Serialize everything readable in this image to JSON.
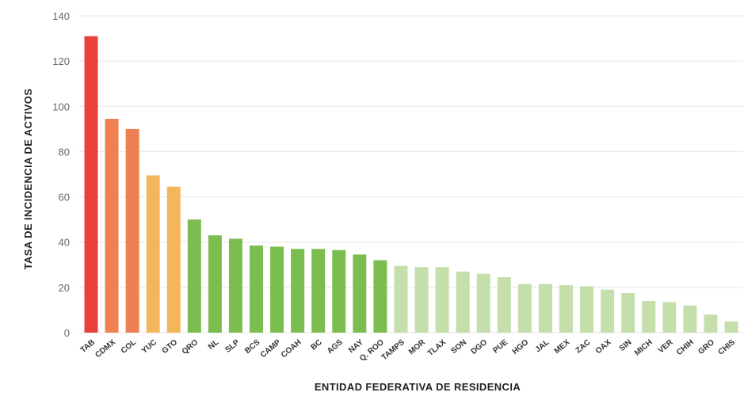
{
  "chart_data": {
    "type": "bar",
    "xlabel": "ENTIDAD FEDERATIVA DE RESIDENCIA",
    "ylabel": "TASA DE INCIDENCIA DE ACTIVOS",
    "ylim": [
      0,
      140
    ],
    "yticks": [
      0,
      20,
      40,
      60,
      80,
      100,
      120,
      140
    ],
    "grid": true,
    "categories": [
      "TAB",
      "CDMX",
      "COL",
      "YUC",
      "GTO",
      "QRO",
      "NL",
      "SLP",
      "BCS",
      "CAMP",
      "COAH",
      "BC",
      "AGS",
      "NAY",
      "Q. ROO",
      "TAMPS",
      "MOR",
      "TLAX",
      "SON",
      "DGO",
      "PUE",
      "HGO",
      "JAL",
      "MEX",
      "ZAC",
      "OAX",
      "SIN",
      "MICH",
      "VER",
      "CHIH",
      "GRO",
      "CHIS"
    ],
    "values": [
      131,
      94.5,
      90,
      69.5,
      64.5,
      50,
      43,
      41.5,
      38.5,
      38,
      37,
      37,
      36.5,
      34.5,
      32,
      29.5,
      29,
      29,
      27,
      26,
      24.5,
      21.5,
      21.5,
      21,
      20.5,
      19,
      17.5,
      14,
      13.5,
      12,
      8,
      5
    ],
    "colors": [
      "#e8413a",
      "#ee8153",
      "#ee8153",
      "#f3b65a",
      "#f3b65a",
      "#7cbd4f",
      "#7cbd4f",
      "#7cbd4f",
      "#7cbd4f",
      "#7cbd4f",
      "#7cbd4f",
      "#7cbd4f",
      "#7cbd4f",
      "#7cbd4f",
      "#7cbd4f",
      "#c5dfac",
      "#c5dfac",
      "#c5dfac",
      "#c5dfac",
      "#c5dfac",
      "#c5dfac",
      "#c5dfac",
      "#c5dfac",
      "#c5dfac",
      "#c5dfac",
      "#c5dfac",
      "#c5dfac",
      "#c5dfac",
      "#c5dfac",
      "#c5dfac",
      "#c5dfac",
      "#c5dfac"
    ]
  }
}
